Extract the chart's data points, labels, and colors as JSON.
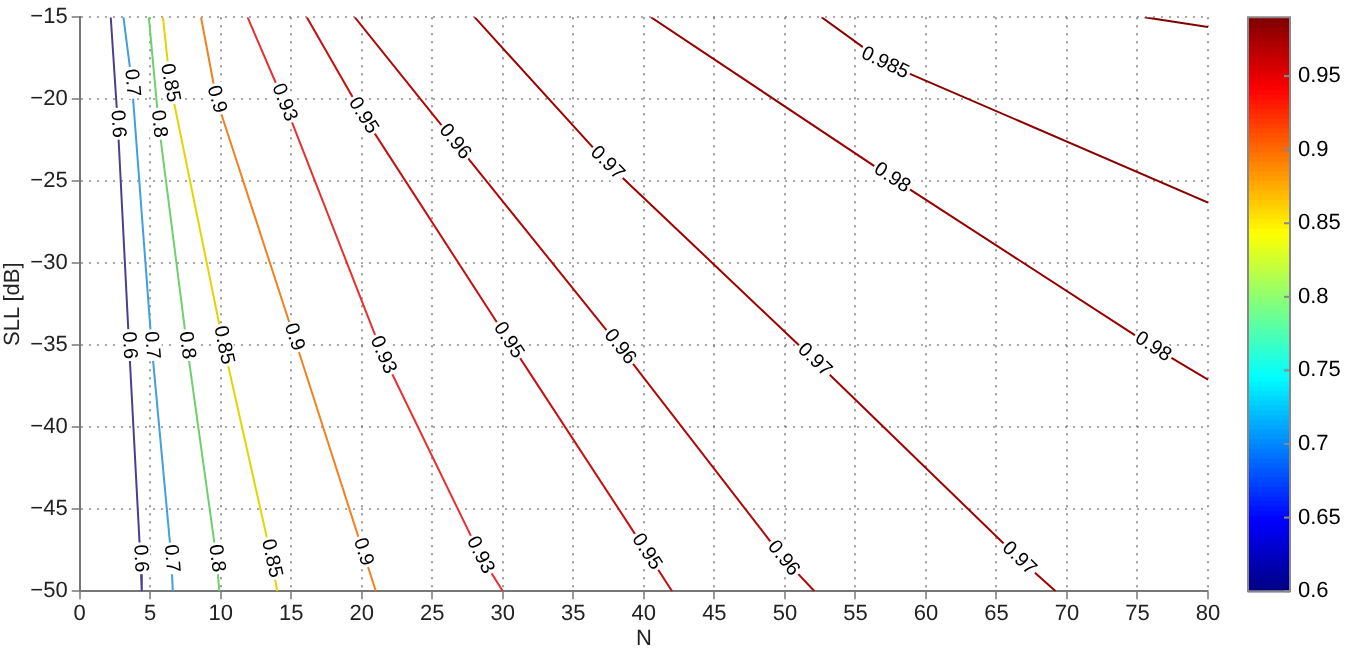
{
  "chart_data": {
    "type": "line",
    "xlabel": "N",
    "ylabel": "SLL [dB]",
    "xlim": [
      0,
      80
    ],
    "xticks": [
      0,
      5,
      10,
      15,
      20,
      25,
      30,
      35,
      40,
      45,
      50,
      55,
      60,
      65,
      70,
      75,
      80
    ],
    "ylim": [
      -50,
      -15
    ],
    "yticks": [
      -50,
      -45,
      -40,
      -35,
      -30,
      -25,
      -20,
      -15
    ],
    "grid": true,
    "legend": false,
    "line_style": "solid",
    "clim": [
      0.6,
      0.99
    ],
    "cticks": [
      0.6,
      0.65,
      0.7,
      0.75,
      0.8,
      0.85,
      0.9,
      0.95
    ],
    "series": [
      {
        "name": "0.6",
        "color": "#4a3f8f",
        "x": [
          2.2,
          2.7,
          3.5,
          4.3,
          4.4
        ],
        "values": [
          -15,
          -21.5,
          -35,
          -48,
          -50
        ]
      },
      {
        "name": "0.7",
        "color": "#3f9fdf",
        "x": [
          3.1,
          3.7,
          5.1,
          6.5,
          6.6
        ],
        "values": [
          -15,
          -19,
          -35,
          -48,
          -50
        ]
      },
      {
        "name": "0.8",
        "color": "#6fcf6f",
        "x": [
          4.9,
          5.6,
          7.6,
          9.7,
          9.9
        ],
        "values": [
          -15,
          -21.5,
          -35,
          -48,
          -50
        ]
      },
      {
        "name": "0.85",
        "color": "#e6d400",
        "x": [
          5.9,
          6.4,
          10.2,
          13.6,
          14.0
        ],
        "values": [
          -15,
          -19,
          -35,
          -48,
          -50
        ]
      },
      {
        "name": "0.9",
        "color": "#f08020",
        "x": [
          8.6,
          9.7,
          15.2,
          20.1,
          21
        ],
        "values": [
          -15,
          -20,
          -34.5,
          -47.6,
          -50
        ]
      },
      {
        "name": "0.93",
        "color": "#e83030",
        "x": [
          11.9,
          14.5,
          21.5,
          28.4,
          30
        ],
        "values": [
          -15,
          -20.2,
          -35.6,
          -47.8,
          -50
        ]
      },
      {
        "name": "0.95",
        "color": "#c41010",
        "x": [
          16.1,
          20.1,
          30.4,
          40.2,
          42
        ],
        "values": [
          -15,
          -21,
          -34.7,
          -47.6,
          -50
        ]
      },
      {
        "name": "0.96",
        "color": "#b00808",
        "x": [
          19.5,
          26.6,
          38.3,
          49.9,
          52.1
        ],
        "values": [
          -15,
          -22.6,
          -35.1,
          -48,
          -50
        ]
      },
      {
        "name": "0.97",
        "color": "#a00000",
        "x": [
          28,
          37.4,
          52.1,
          66.6,
          69.2
        ],
        "values": [
          -15,
          -23.9,
          -35.9,
          -48,
          -50
        ]
      },
      {
        "name": "0.98",
        "color": "#960000",
        "x": [
          40.5,
          57.6,
          76.1,
          80
        ],
        "values": [
          -15,
          -24.8,
          -35.1,
          -37.1
        ]
      },
      {
        "name": "0.985",
        "color": "#8a0000",
        "x": [
          52.6,
          57.1,
          80
        ],
        "values": [
          -15,
          -17.8,
          -26.3
        ]
      },
      {
        "color": "#800000",
        "x": [
          75.5,
          80
        ],
        "values": [
          -15,
          -15.6
        ]
      }
    ]
  }
}
